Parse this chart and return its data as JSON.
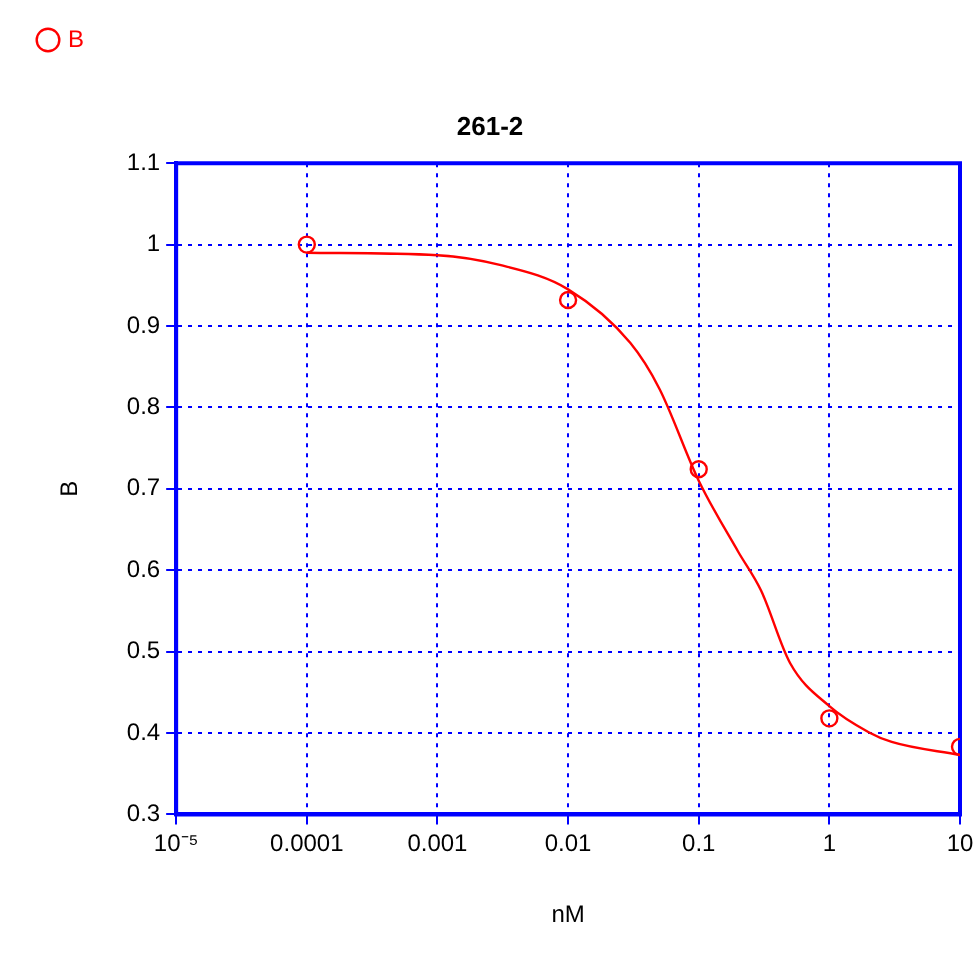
{
  "chart_data": {
    "type": "scatter",
    "title": "261-2",
    "xlabel": "nM",
    "ylabel": "B",
    "log": "x",
    "xlim": [
      1e-05,
      10
    ],
    "xticks": [
      {
        "value": 1e-05,
        "label": "10⁻⁵"
      },
      0.0001,
      0.001,
      0.01,
      0.1,
      1,
      10
    ],
    "ylim": [
      0.3,
      1.1
    ],
    "yticks": [
      0.3,
      0.4,
      0.5,
      0.6,
      0.7,
      0.8,
      0.9,
      1,
      1.1
    ],
    "grid": true,
    "legend": "top left",
    "series": [
      {
        "name": "B",
        "marker": "circle",
        "color": "#ff0000",
        "x": [
          0.0001,
          0.01,
          0.1,
          1,
          10
        ],
        "values": [
          1.0,
          0.932,
          0.724,
          0.418,
          0.383
        ]
      },
      {
        "type": "line",
        "marker": "none",
        "color": "#ff0000",
        "x": [
          0.0001,
          0.001,
          0.003,
          0.01,
          0.03,
          0.05,
          0.1,
          0.2,
          0.3,
          0.5,
          1,
          2,
          3,
          10
        ],
        "values": [
          0.99,
          0.987,
          0.975,
          0.945,
          0.879,
          0.823,
          0.71,
          0.623,
          0.575,
          0.486,
          0.433,
          0.401,
          0.389,
          0.373
        ]
      }
    ]
  }
}
